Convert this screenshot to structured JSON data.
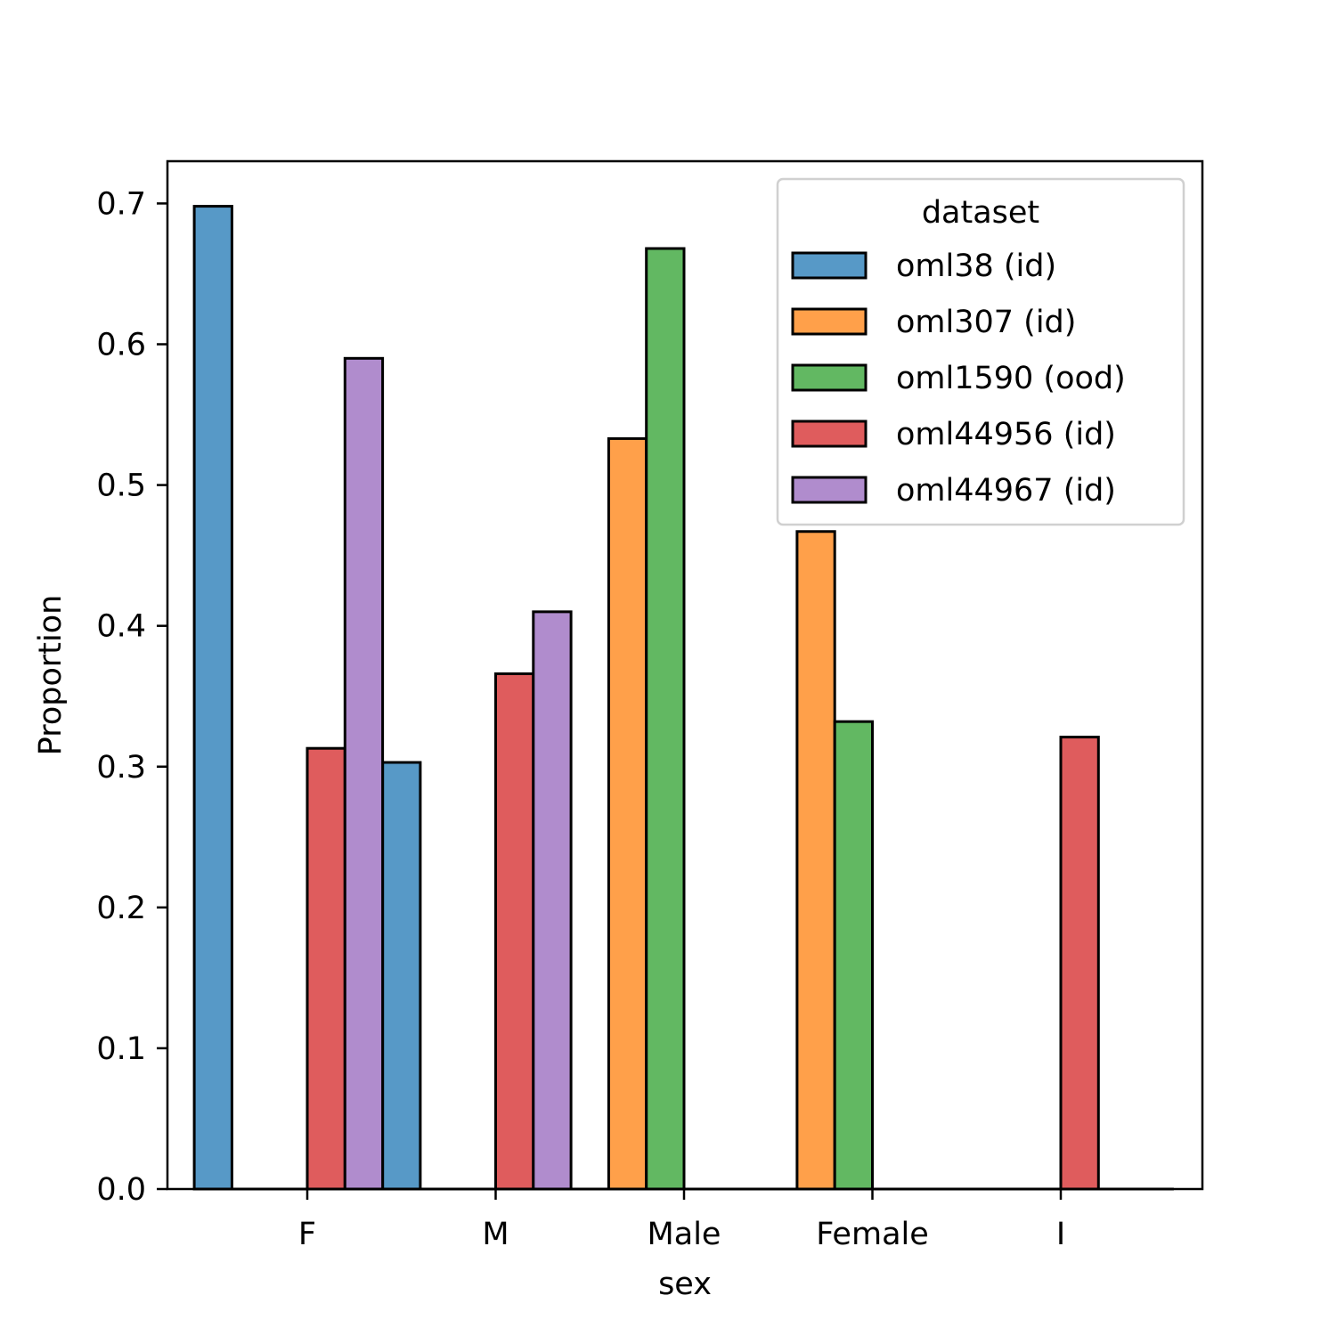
{
  "chart_data": {
    "type": "bar",
    "xlabel": "sex",
    "ylabel": "Proportion",
    "ylim": [
      0,
      0.73
    ],
    "yticks": [
      "0.0",
      "0.1",
      "0.2",
      "0.3",
      "0.4",
      "0.5",
      "0.6",
      "0.7"
    ],
    "categories": [
      "F",
      "M",
      "Male",
      "Female",
      "I"
    ],
    "legend": {
      "title": "dataset",
      "position": "top-right"
    },
    "series": [
      {
        "name": "oml38 (id)",
        "color": "#5799c7",
        "bars": [
          {
            "x": "F",
            "offset": -2.5,
            "value": 0.698
          },
          {
            "x": "F",
            "offset": 2.5,
            "value": 0.303
          }
        ]
      },
      {
        "name": "oml307 (id)",
        "color": "#ffa04a",
        "bars": [
          {
            "x": "Male",
            "offset": -1.5,
            "value": 0.533
          },
          {
            "x": "Female",
            "offset": -1.5,
            "value": 0.467
          }
        ]
      },
      {
        "name": "oml1590 (ood)",
        "color": "#62b862",
        "bars": [
          {
            "x": "Male",
            "offset": -0.5,
            "value": 0.668
          },
          {
            "x": "Female",
            "offset": -0.5,
            "value": 0.332
          }
        ]
      },
      {
        "name": "oml44956 (id)",
        "color": "#df5c5d",
        "bars": [
          {
            "x": "F",
            "offset": 0.5,
            "value": 0.313
          },
          {
            "x": "M",
            "offset": 0.5,
            "value": 0.366
          },
          {
            "x": "I",
            "offset": 0.5,
            "value": 0.321
          }
        ]
      },
      {
        "name": "oml44967 (id)",
        "color": "#b08ccd",
        "bars": [
          {
            "x": "F",
            "offset": 1.5,
            "value": 0.59
          },
          {
            "x": "M",
            "offset": 1.5,
            "value": 0.41
          }
        ]
      }
    ]
  }
}
